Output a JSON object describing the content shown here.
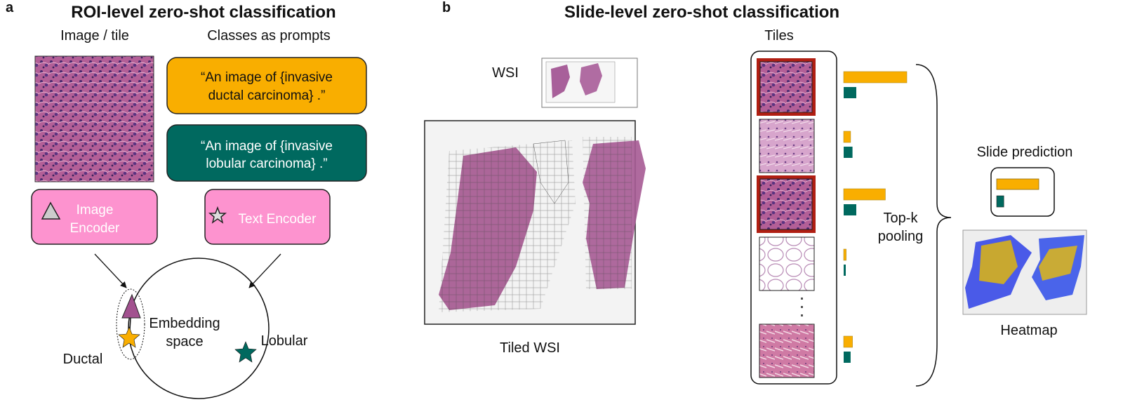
{
  "panel_a": {
    "letter": "a",
    "title": "ROI-level zero-shot classification",
    "image_label": "Image / tile",
    "prompts_label": "Classes as prompts",
    "prompt_ductal": [
      "“An image of {invasive",
      "ductal carcinoma} .”"
    ],
    "prompt_lobular": [
      "“An image of {invasive",
      "lobular carcinoma} .”"
    ],
    "image_encoder": [
      "Image",
      "Encoder"
    ],
    "text_encoder": "Text Encoder",
    "embedding_space": [
      "Embedding",
      "space"
    ],
    "ductal_label": "Ductal",
    "lobular_label": "Lobular"
  },
  "panel_b": {
    "letter": "b",
    "title": "Slide-level zero-shot classification",
    "wsi_label": "WSI",
    "tiled_wsi_label": "Tiled WSI",
    "tiles_label": "Tiles",
    "pooling_label": [
      "Top-k",
      "pooling"
    ],
    "slide_prediction_label": "Slide prediction",
    "heatmap_label": "Heatmap",
    "tile_scores": [
      {
        "top_k": true,
        "ductal": 1.0,
        "lobular": 0.2,
        "tissue": "dense"
      },
      {
        "top_k": false,
        "ductal": 0.11,
        "lobular": 0.14,
        "tissue": "light"
      },
      {
        "top_k": true,
        "ductal": 0.66,
        "lobular": 0.2,
        "tissue": "dense"
      },
      {
        "top_k": false,
        "ductal": 0.04,
        "lobular": 0.03,
        "tissue": "fat"
      },
      {
        "top_k": false,
        "ductal": 0.14,
        "lobular": 0.11,
        "tissue": "stroma"
      }
    ],
    "slide_prediction": {
      "ductal": 1.0,
      "lobular": 0.17
    }
  },
  "colors": {
    "ductal": "#F9AE00",
    "lobular": "#00695F",
    "encoder": "#FD93CF",
    "top_k_frame": "#B01E12",
    "tissue": "#A2518F"
  }
}
